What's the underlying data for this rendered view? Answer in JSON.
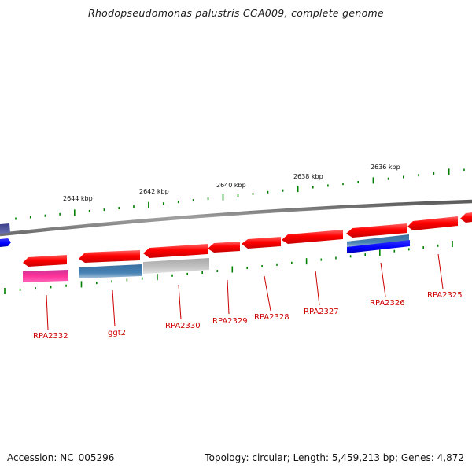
{
  "title": "Rhodopseudomonas palustris CGA009, complete genome",
  "footer": {
    "accession": "Accession: NC_005296",
    "summary": "Topology: circular; Length: 5,459,213 bp; Genes: 4,872"
  },
  "ruler": [
    {
      "label": "2644 kbp"
    },
    {
      "label": "2642 kbp"
    },
    {
      "label": "2640 kbp"
    },
    {
      "label": "2638 kbp"
    },
    {
      "label": "2636 kbp"
    }
  ],
  "genes": [
    {
      "label": "RPA2332"
    },
    {
      "label": "ggt2"
    },
    {
      "label": "RPA2330"
    },
    {
      "label": "RPA2329"
    },
    {
      "label": "RPA2328"
    },
    {
      "label": "RPA2327"
    },
    {
      "label": "RPA2326"
    },
    {
      "label": "RPA2325"
    }
  ],
  "colors": {
    "backbone": "#808080",
    "gene_red": "#ff0000",
    "gene_magenta": "#ff3399",
    "gene_steelblue": "#4682b4",
    "gene_grey": "#c0c0c0",
    "gene_blue": "#0000ff",
    "gene_navy": "#483d8b",
    "tick_green": "#008000",
    "label_red": "#cc0000"
  }
}
